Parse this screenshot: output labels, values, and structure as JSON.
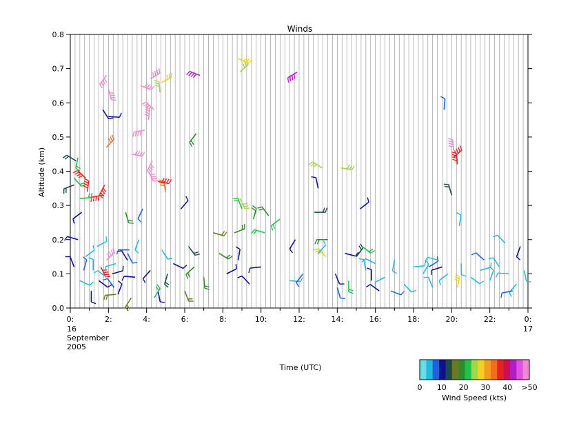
{
  "chart_data": {
    "type": "scatter",
    "title": "Winds",
    "xlabel": "Time (UTC)",
    "ylabel": "Altitude (km)",
    "xlim": [
      0,
      24
    ],
    "ylim": [
      0,
      0.8
    ],
    "x_ticks": [
      {
        "v": 0,
        "label": "0:"
      },
      {
        "v": 2,
        "label": "2:"
      },
      {
        "v": 4,
        "label": "4:"
      },
      {
        "v": 6,
        "label": "6:"
      },
      {
        "v": 8,
        "label": "8:"
      },
      {
        "v": 10,
        "label": "10:"
      },
      {
        "v": 12,
        "label": "12:"
      },
      {
        "v": 14,
        "label": "14:"
      },
      {
        "v": 16,
        "label": "16:"
      },
      {
        "v": 18,
        "label": "18:"
      },
      {
        "v": 20,
        "label": "20:"
      },
      {
        "v": 22,
        "label": "22:"
      },
      {
        "v": 24,
        "label": "0:"
      }
    ],
    "y_ticks": [
      "0.0",
      "0.1",
      "0.2",
      "0.3",
      "0.4",
      "0.5",
      "0.6",
      "0.7",
      "0.8"
    ],
    "date_start": [
      "16",
      "September",
      "2005"
    ],
    "date_end": [
      "17"
    ],
    "profile_interval_hours": 0.25,
    "symbol": "wind barbs",
    "colorbar": {
      "title": "Wind Speed (kts)",
      "labels": [
        "0",
        "10",
        "20",
        "30",
        "40",
        ">50"
      ],
      "colors": [
        "#66e0e6",
        "#22b8e0",
        "#1f62d8",
        "#10108e",
        "#1a4a4a",
        "#6b7a22",
        "#2e8b2e",
        "#1fc24a",
        "#a6d648",
        "#f0d020",
        "#f59b20",
        "#f06e1e",
        "#e42222",
        "#c81050",
        "#b020c0",
        "#e050e0",
        "#f08ad0"
      ]
    },
    "series": [
      {
        "speed_class": 3,
        "points": [
          [
            0.2,
            0.12
          ],
          [
            0.4,
            0.2
          ],
          [
            0.6,
            0.28
          ],
          [
            1.1,
            0.05
          ],
          [
            1.5,
            0.08
          ],
          [
            2.2,
            0.1
          ],
          [
            2.5,
            0.04
          ],
          [
            3.0,
            0.14
          ],
          [
            3.4,
            0.09
          ],
          [
            4.2,
            0.11
          ],
          [
            4.6,
            0.05
          ],
          [
            5.4,
            0.13
          ],
          [
            8.2,
            0.1
          ],
          [
            8.8,
            0.14
          ],
          [
            9.4,
            0.07
          ],
          [
            10.0,
            0.12
          ],
          [
            11.8,
            0.2
          ],
          [
            13.9,
            0.1
          ],
          [
            14.4,
            0.16
          ],
          [
            15.2,
            0.29
          ],
          [
            15.8,
            0.08
          ],
          [
            16.2,
            0.05
          ],
          [
            19.5,
            0.12
          ],
          [
            23.6,
            0.18
          ],
          [
            1.7,
            0.58
          ],
          [
            2.0,
            0.56
          ],
          [
            5.8,
            0.29
          ],
          [
            13.0,
            0.35
          ]
        ]
      },
      {
        "speed_class": 4,
        "points": [
          [
            0.3,
            0.43
          ],
          [
            0.2,
            0.36
          ],
          [
            5.1,
            0.1
          ],
          [
            6.2,
            0.18
          ],
          [
            12.8,
            0.28
          ],
          [
            15.0,
            0.15
          ],
          [
            20.0,
            0.33
          ]
        ]
      },
      {
        "speed_class": 5,
        "points": [
          [
            2.4,
            0.04
          ],
          [
            3.2,
            0.03
          ],
          [
            6.0,
            0.05
          ],
          [
            7.5,
            0.22
          ]
        ]
      },
      {
        "speed_class": 6,
        "points": [
          [
            6.5,
            0.12
          ],
          [
            7.0,
            0.09
          ],
          [
            7.8,
            0.16
          ],
          [
            8.6,
            0.22
          ],
          [
            9.6,
            0.26
          ],
          [
            10.4,
            0.27
          ],
          [
            13.5,
            0.2
          ],
          [
            6.6,
            0.51
          ],
          [
            2.9,
            0.28
          ]
        ]
      },
      {
        "speed_class": 7,
        "points": [
          [
            0.4,
            0.44
          ],
          [
            0.2,
            0.38
          ],
          [
            0.5,
            0.32
          ],
          [
            4.4,
            0.03
          ],
          [
            9.0,
            0.29
          ],
          [
            10.2,
            0.22
          ],
          [
            11.0,
            0.26
          ],
          [
            14.6,
            0.08
          ],
          [
            15.3,
            0.18
          ]
        ]
      },
      {
        "speed_class": 8,
        "points": [
          [
            8.9,
            0.32
          ],
          [
            14.2,
            0.41
          ],
          [
            8.9,
            0.69
          ],
          [
            4.7,
            0.63
          ],
          [
            13.2,
            0.41
          ]
        ]
      },
      {
        "speed_class": 9,
        "points": [
          [
            8.8,
            0.73
          ],
          [
            4.8,
            0.66
          ],
          [
            20.3,
            0.06
          ],
          [
            13.4,
            0.15
          ]
        ]
      },
      {
        "speed_class": 11,
        "points": [
          [
            1.9,
            0.47
          ],
          [
            5.0,
            0.34
          ]
        ]
      },
      {
        "speed_class": 12,
        "points": [
          [
            0.9,
            0.34
          ],
          [
            0.8,
            0.38
          ],
          [
            1.7,
            0.33
          ],
          [
            1.8,
            0.36
          ],
          [
            1.6,
            0.12
          ],
          [
            4.6,
            0.37
          ],
          [
            20.1,
            0.44
          ],
          [
            20.3,
            0.42
          ]
        ]
      },
      {
        "speed_class": 14,
        "points": [
          [
            6.8,
            0.68
          ],
          [
            11.9,
            0.69
          ]
        ]
      },
      {
        "speed_class": 16,
        "points": [
          [
            1.9,
            0.68
          ],
          [
            2.0,
            0.64
          ],
          [
            3.7,
            0.65
          ],
          [
            4.2,
            0.67
          ],
          [
            4.1,
            0.55
          ],
          [
            4.4,
            0.58
          ],
          [
            3.9,
            0.52
          ],
          [
            4.3,
            0.43
          ],
          [
            4.1,
            0.4
          ],
          [
            3.2,
            0.45
          ],
          [
            1.9,
            0.14
          ],
          [
            20.1,
            0.46
          ]
        ]
      },
      {
        "speed_class": 1,
        "points": [
          [
            0.8,
            0.15
          ],
          [
            1.2,
            0.11
          ],
          [
            1.9,
            0.09
          ],
          [
            2.4,
            0.13
          ],
          [
            3.6,
            0.2
          ],
          [
            4.8,
            0.17
          ],
          [
            11.5,
            0.08
          ],
          [
            13.0,
            0.16
          ],
          [
            15.5,
            0.11
          ],
          [
            16.0,
            0.13
          ],
          [
            16.5,
            0.09
          ],
          [
            17.0,
            0.14
          ],
          [
            17.5,
            0.07
          ],
          [
            18.0,
            0.12
          ],
          [
            18.5,
            0.1
          ],
          [
            19.0,
            0.06
          ],
          [
            19.3,
            0.14
          ],
          [
            19.8,
            0.1
          ],
          [
            20.5,
            0.13
          ],
          [
            21.0,
            0.09
          ],
          [
            21.5,
            0.11
          ],
          [
            22.0,
            0.08
          ],
          [
            22.5,
            0.12
          ],
          [
            23.0,
            0.1
          ],
          [
            23.4,
            0.07
          ],
          [
            23.8,
            0.11
          ],
          [
            0.5,
            0.08
          ],
          [
            1.4,
            0.18
          ],
          [
            20.4,
            0.24
          ],
          [
            22.8,
            0.19
          ]
        ]
      },
      {
        "speed_class": 2,
        "points": [
          [
            0.7,
            0.11
          ],
          [
            2.3,
            0.06
          ],
          [
            3.1,
            0.17
          ],
          [
            12.2,
            0.1
          ],
          [
            14.0,
            0.06
          ],
          [
            16.8,
            0.05
          ],
          [
            18.8,
            0.12
          ],
          [
            19.6,
            0.58
          ],
          [
            21.7,
            0.14
          ],
          [
            23.2,
            0.05
          ],
          [
            3.8,
            0.29
          ],
          [
            3.0,
            0.16
          ]
        ]
      }
    ]
  },
  "vertical_gridlines_every_hours": 0.25
}
